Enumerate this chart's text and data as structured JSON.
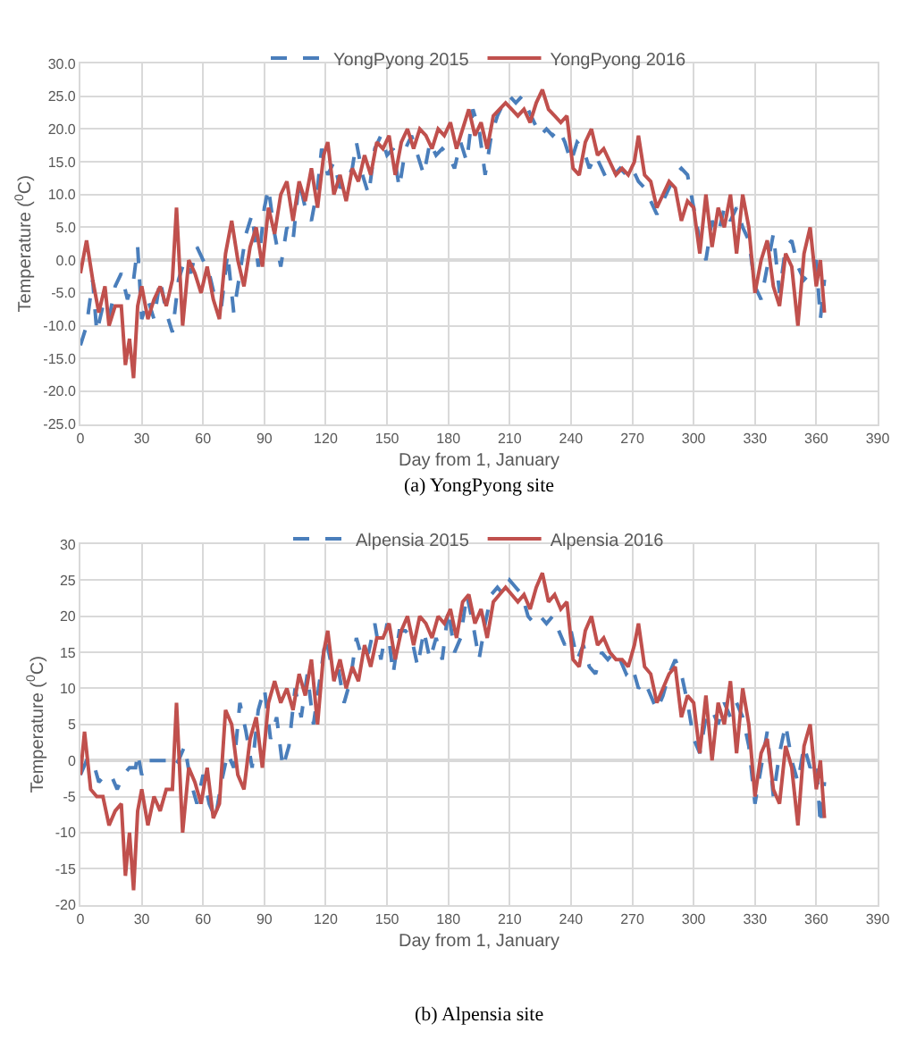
{
  "chart_data": [
    {
      "type": "line",
      "xlabel": "Day from 1, January",
      "ylabel": "Temperature ($^{0}$C)",
      "annotations": [
        "(a) YongPyong site"
      ],
      "xlim": [
        0,
        390
      ],
      "xticks": [
        0,
        30,
        60,
        90,
        120,
        150,
        180,
        210,
        240,
        270,
        300,
        330,
        360,
        390
      ],
      "ylim": [
        -25,
        30
      ],
      "yticks": [
        {
          "value": -25,
          "label": "-25.0"
        },
        {
          "value": -20,
          "label": "-20.0"
        },
        {
          "value": -15,
          "label": "-15.0"
        },
        {
          "value": -10,
          "label": "-10.0"
        },
        {
          "value": -5,
          "label": "-5.0"
        },
        {
          "value": 0,
          "label": "0.0"
        },
        {
          "value": 5,
          "label": "5.0"
        },
        {
          "value": 10,
          "label": "10.0"
        },
        {
          "value": 15,
          "label": "15.0"
        },
        {
          "value": 20,
          "label": "20.0"
        },
        {
          "value": 25,
          "label": "25.0"
        },
        {
          "value": 30,
          "label": "30.0"
        }
      ],
      "grid": true,
      "legend": "top",
      "marker": "none",
      "series": [
        {
          "name": "YongPyong 2015",
          "color": "#4a7ebb",
          "line_style": "dashed",
          "x": [
            0,
            3,
            6,
            8,
            11,
            14,
            17,
            20,
            23,
            26,
            28,
            30,
            33,
            36,
            39,
            42,
            45,
            48,
            51,
            54,
            57,
            60,
            63,
            66,
            69,
            72,
            75,
            78,
            81,
            84,
            87,
            90,
            92,
            95,
            98,
            101,
            104,
            107,
            110,
            113,
            116,
            118,
            121,
            124,
            127,
            130,
            133,
            135,
            138,
            141,
            144,
            147,
            150,
            153,
            156,
            159,
            162,
            165,
            168,
            171,
            174,
            177,
            180,
            183,
            186,
            189,
            192,
            195,
            198,
            201,
            204,
            207,
            210,
            213,
            216,
            219,
            222,
            225,
            228,
            231,
            234,
            237,
            240,
            243,
            246,
            249,
            252,
            255,
            258,
            261,
            264,
            267,
            270,
            273,
            276,
            279,
            282,
            285,
            288,
            291,
            294,
            297,
            300,
            303,
            306,
            309,
            312,
            315,
            318,
            321,
            324,
            327,
            330,
            333,
            336,
            339,
            342,
            345,
            348,
            351,
            354,
            357,
            360,
            362,
            364
          ],
          "values": [
            -13,
            -10,
            -3,
            -11,
            -7,
            -9,
            -4,
            -2,
            -6,
            -3,
            2,
            -9,
            -6,
            -9,
            -3,
            -8,
            -11,
            -3,
            0,
            -2,
            2,
            0,
            -2,
            -6,
            -7,
            1,
            -8,
            -2,
            4,
            7,
            -1,
            8,
            11,
            4,
            -1,
            5,
            3,
            12,
            8,
            6,
            11,
            17,
            13,
            15,
            11,
            12,
            14,
            18,
            13,
            10,
            17,
            19,
            16,
            17,
            11,
            17,
            19,
            16,
            13,
            18,
            16,
            17,
            16,
            14,
            18,
            15,
            23,
            20,
            13,
            19,
            22,
            24,
            25,
            24,
            25,
            23,
            21,
            19,
            20,
            19,
            20,
            18,
            15,
            18,
            17,
            14,
            16,
            14,
            12,
            13,
            14,
            13,
            14,
            12,
            11,
            9,
            7,
            9,
            11,
            13,
            14,
            13,
            8,
            3,
            0,
            6,
            4,
            8,
            6,
            8,
            5,
            3,
            -4,
            -6,
            -1,
            4,
            -5,
            2,
            3,
            -1,
            -3,
            -2,
            0,
            -9,
            -3
          ]
        },
        {
          "name": "YongPyong 2016",
          "color": "#c0504d",
          "line_style": "solid",
          "x": [
            0,
            3,
            6,
            9,
            12,
            14,
            17,
            20,
            22,
            24,
            26,
            28,
            30,
            33,
            36,
            39,
            42,
            45,
            47,
            50,
            53,
            56,
            59,
            62,
            65,
            68,
            71,
            74,
            77,
            80,
            83,
            86,
            89,
            92,
            95,
            98,
            101,
            104,
            107,
            110,
            113,
            116,
            119,
            121,
            124,
            127,
            130,
            133,
            136,
            139,
            142,
            145,
            148,
            151,
            154,
            157,
            160,
            163,
            166,
            169,
            172,
            175,
            178,
            181,
            184,
            187,
            190,
            193,
            196,
            199,
            202,
            205,
            208,
            211,
            214,
            217,
            220,
            223,
            226,
            229,
            232,
            235,
            238,
            241,
            244,
            247,
            250,
            253,
            256,
            259,
            262,
            265,
            268,
            271,
            273,
            276,
            279,
            282,
            285,
            288,
            291,
            294,
            297,
            300,
            303,
            306,
            309,
            312,
            315,
            318,
            321,
            324,
            327,
            330,
            333,
            336,
            339,
            342,
            345,
            348,
            351,
            354,
            357,
            360,
            362,
            364
          ],
          "values": [
            -2,
            3,
            -3,
            -8,
            -4,
            -10,
            -7,
            -7,
            -16,
            -12,
            -18,
            -7,
            -4,
            -9,
            -6,
            -4,
            -7,
            -3,
            8,
            -10,
            0,
            -2,
            -5,
            -1,
            -6,
            -9,
            1,
            6,
            0,
            -4,
            2,
            5,
            -1,
            8,
            4,
            10,
            12,
            6,
            12,
            9,
            14,
            8,
            16,
            18,
            10,
            13,
            9,
            14,
            12,
            16,
            13,
            18,
            17,
            19,
            13,
            18,
            20,
            17,
            20,
            19,
            17,
            20,
            19,
            21,
            17,
            20,
            23,
            19,
            21,
            17,
            22,
            23,
            24,
            23,
            22,
            23,
            21,
            24,
            26,
            23,
            22,
            21,
            22,
            14,
            13,
            18,
            20,
            16,
            17,
            15,
            13,
            14,
            13,
            15,
            19,
            13,
            12,
            8,
            10,
            12,
            11,
            6,
            9,
            8,
            1,
            10,
            2,
            8,
            5,
            10,
            1,
            10,
            5,
            -5,
            0,
            3,
            -4,
            -7,
            1,
            -1,
            -10,
            1,
            5,
            -4,
            0,
            -8
          ]
        }
      ]
    },
    {
      "type": "line",
      "xlabel": "Day from 1, January",
      "ylabel": "Temperature ($^{0}$C)",
      "annotations": [
        "(b) Alpensia site"
      ],
      "xlim": [
        0,
        390
      ],
      "xticks": [
        0,
        30,
        60,
        90,
        120,
        150,
        180,
        210,
        240,
        270,
        300,
        330,
        360,
        390
      ],
      "ylim": [
        -20,
        30
      ],
      "yticks": [
        -20,
        -15,
        -10,
        -5,
        0,
        5,
        10,
        15,
        20,
        25,
        30
      ],
      "grid": true,
      "legend": "top",
      "marker": "none",
      "series": [
        {
          "name": "Alpensia 2015",
          "color": "#4a7ebb",
          "line_style": "dashed",
          "x": [
            0,
            3,
            6,
            9,
            12,
            15,
            18,
            21,
            24,
            27,
            28,
            30,
            33,
            36,
            39,
            42,
            45,
            48,
            51,
            54,
            57,
            60,
            63,
            66,
            69,
            72,
            75,
            78,
            81,
            84,
            87,
            90,
            93,
            96,
            99,
            102,
            105,
            108,
            111,
            114,
            117,
            120,
            123,
            126,
            129,
            132,
            135,
            138,
            141,
            144,
            147,
            150,
            153,
            156,
            159,
            162,
            165,
            168,
            171,
            174,
            177,
            180,
            183,
            186,
            189,
            192,
            195,
            198,
            201,
            204,
            207,
            210,
            213,
            216,
            219,
            222,
            225,
            228,
            231,
            234,
            237,
            240,
            243,
            246,
            249,
            252,
            255,
            258,
            261,
            264,
            267,
            270,
            273,
            276,
            279,
            282,
            285,
            288,
            291,
            294,
            297,
            300,
            303,
            306,
            309,
            312,
            315,
            318,
            321,
            324,
            327,
            330,
            333,
            336,
            339,
            342,
            345,
            348,
            351,
            354,
            357,
            360,
            362,
            364
          ],
          "values": [
            -2,
            0,
            0,
            -3,
            -2,
            -2,
            -4,
            -2,
            -1,
            -1,
            1,
            -2,
            0,
            0,
            0,
            0,
            -1,
            0,
            2,
            -3,
            -6,
            -2,
            -6,
            -8,
            -3,
            1,
            -1,
            8,
            4,
            -1,
            7,
            10,
            3,
            6,
            -1,
            2,
            10,
            6,
            12,
            5,
            11,
            17,
            13,
            13,
            8,
            11,
            17,
            14,
            15,
            19,
            14,
            19,
            12,
            18,
            18,
            17,
            13,
            18,
            14,
            17,
            14,
            21,
            15,
            17,
            23,
            19,
            14,
            19,
            23,
            24,
            23,
            25,
            24,
            23,
            20,
            19,
            20,
            19,
            20,
            18,
            16,
            18,
            14,
            16,
            13,
            12,
            15,
            14,
            15,
            14,
            12,
            13,
            10,
            11,
            9,
            7,
            9,
            12,
            14,
            12,
            8,
            3,
            1,
            6,
            7,
            5,
            8,
            6,
            8,
            6,
            2,
            -6,
            -1,
            4,
            -5,
            1,
            5,
            0,
            -3,
            2,
            -1,
            0,
            -9,
            -3
          ]
        },
        {
          "name": "Alpensia 2016",
          "color": "#c0504d",
          "line_style": "solid",
          "x": [
            0,
            2,
            5,
            8,
            11,
            14,
            17,
            20,
            22,
            24,
            26,
            28,
            30,
            33,
            36,
            39,
            42,
            45,
            47,
            50,
            53,
            56,
            59,
            62,
            65,
            68,
            71,
            74,
            77,
            80,
            83,
            86,
            89,
            92,
            95,
            98,
            101,
            104,
            107,
            110,
            113,
            116,
            119,
            121,
            124,
            127,
            130,
            133,
            136,
            139,
            142,
            145,
            148,
            151,
            154,
            157,
            160,
            163,
            166,
            169,
            172,
            175,
            178,
            181,
            184,
            187,
            190,
            193,
            196,
            199,
            202,
            205,
            208,
            211,
            214,
            217,
            220,
            223,
            226,
            229,
            232,
            235,
            238,
            241,
            244,
            247,
            250,
            253,
            256,
            259,
            262,
            265,
            268,
            271,
            273,
            276,
            279,
            282,
            285,
            288,
            291,
            294,
            297,
            300,
            303,
            306,
            309,
            312,
            315,
            318,
            321,
            324,
            327,
            330,
            333,
            336,
            339,
            342,
            345,
            348,
            351,
            354,
            357,
            360,
            362,
            364
          ],
          "values": [
            -2,
            4,
            -4,
            -5,
            -5,
            -9,
            -7,
            -6,
            -16,
            -10,
            -18,
            -7,
            -4,
            -9,
            -5,
            -7,
            -4,
            -4,
            8,
            -10,
            -1,
            -3,
            -6,
            -1,
            -8,
            -6,
            7,
            5,
            -2,
            -4,
            3,
            6,
            -1,
            8,
            11,
            8,
            10,
            7,
            12,
            9,
            14,
            5,
            15,
            18,
            11,
            14,
            10,
            13,
            11,
            16,
            13,
            17,
            17,
            19,
            14,
            18,
            20,
            16,
            20,
            19,
            17,
            20,
            19,
            21,
            17,
            22,
            23,
            19,
            21,
            17,
            22,
            23,
            24,
            23,
            22,
            23,
            21,
            24,
            26,
            22,
            23,
            21,
            22,
            14,
            13,
            18,
            20,
            16,
            17,
            15,
            14,
            14,
            13,
            16,
            19,
            13,
            12,
            8,
            10,
            12,
            13,
            6,
            9,
            8,
            1,
            9,
            0,
            8,
            5,
            11,
            1,
            10,
            5,
            -5,
            1,
            3,
            -4,
            -6,
            2,
            -1,
            -9,
            2,
            5,
            -4,
            0,
            -8
          ]
        }
      ]
    }
  ]
}
